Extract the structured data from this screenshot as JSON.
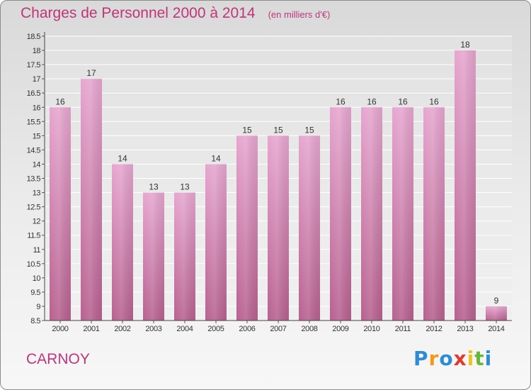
{
  "header": {
    "title": "Charges de Personnel 2000 à 2014",
    "subtitle": "(en milliers d'€)"
  },
  "commune": "CARNOY",
  "logo": {
    "letters": [
      "P",
      "r",
      "o",
      "x",
      "i",
      "t",
      "i"
    ],
    "colors": [
      "#2e8bd6",
      "#f29a1a",
      "#2e8bd6",
      "#e23b2e",
      "#f0c31a",
      "#6ab53c",
      "#2e8bd6"
    ]
  },
  "colors": {
    "bar_top": "#e6a6cf",
    "bar_bottom": "#b7618f",
    "text": "#333333",
    "accent": "#c0357a"
  },
  "chart_data": {
    "type": "bar",
    "categories": [
      "2000",
      "2001",
      "2002",
      "2003",
      "2004",
      "2005",
      "2006",
      "2007",
      "2008",
      "2009",
      "2010",
      "2011",
      "2012",
      "2013",
      "2014"
    ],
    "values": [
      16,
      17,
      14,
      13,
      13,
      14,
      15,
      15,
      15,
      16,
      16,
      16,
      16,
      18,
      9
    ],
    "value_labels": [
      "16",
      "17",
      "14",
      "13",
      "13",
      "14",
      "15",
      "15",
      "15",
      "16",
      "16",
      "16",
      "16",
      "18",
      "9"
    ],
    "ylim": [
      8.5,
      18.5
    ],
    "yticks": [
      "8.5",
      "9",
      "9.5",
      "10",
      "10.5",
      "11",
      "11.5",
      "12",
      "12.5",
      "13",
      "13.5",
      "14",
      "14.5",
      "15",
      "15.5",
      "16",
      "16.5",
      "17",
      "17.5",
      "18",
      "18.5"
    ],
    "grid": true,
    "legend": "none"
  }
}
